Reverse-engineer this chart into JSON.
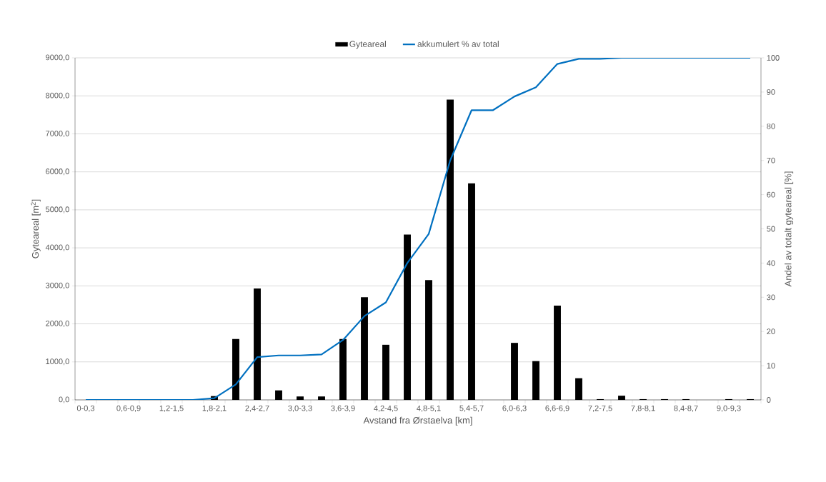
{
  "chart_data": {
    "type": "bar",
    "categories": [
      "0-0,3",
      null,
      "0,6-0,9",
      null,
      "1,2-1,5",
      null,
      "1,8-2,1",
      null,
      "2,4-2,7",
      null,
      "3,0-3,3",
      null,
      "3,6-3,9",
      null,
      "4,2-4,5",
      null,
      "4,8-5,1",
      null,
      "5,4-5,7",
      null,
      "6,0-6,3",
      null,
      "6,6-6,9",
      null,
      "7,2-7,5",
      null,
      "7,8-8,1",
      null,
      "8,4-8,7",
      null,
      "9,0-9,3",
      null
    ],
    "series": [
      {
        "name": "Gyteareal",
        "color": "#000000",
        "values": [
          0,
          0,
          0,
          0,
          0,
          0,
          100,
          1600,
          2930,
          250,
          90,
          90,
          1600,
          2700,
          1450,
          4350,
          3150,
          7900,
          5700,
          0,
          1500,
          1020,
          2480,
          570,
          20,
          110,
          20,
          20,
          20,
          0,
          20,
          20
        ]
      },
      {
        "name": "akkumulert % av total",
        "type": "line",
        "axis": "y2",
        "color": "#0070c0",
        "values": [
          0,
          0,
          0,
          0,
          0,
          0,
          0.5,
          4.5,
          12.5,
          13,
          13,
          13.3,
          17.5,
          24.5,
          28.5,
          40,
          48.5,
          70,
          84.7,
          84.7,
          88.7,
          91.4,
          98.2,
          99.7,
          99.7,
          100,
          100,
          100,
          100,
          100,
          100,
          100
        ]
      }
    ],
    "xlabel": "Avstand fra Ørstaelva [km]",
    "ylabel": "Gyteareal [m$^{2}$]",
    "y2label": "Andel av totalt gyteareal [%]",
    "ylim": [
      0,
      9000
    ],
    "yticks": [
      {
        "value": 0,
        "label": "0,0"
      },
      {
        "value": 1000,
        "label": "1000,0"
      },
      {
        "value": 2000,
        "label": "2000,0"
      },
      {
        "value": 3000,
        "label": "3000,0"
      },
      {
        "value": 4000,
        "label": "4000,0"
      },
      {
        "value": 5000,
        "label": "5000,0"
      },
      {
        "value": 6000,
        "label": "6000,0"
      },
      {
        "value": 7000,
        "label": "7000,0"
      },
      {
        "value": 8000,
        "label": "8000,0"
      },
      {
        "value": 9000,
        "label": "9000,0"
      }
    ],
    "y2lim": [
      0,
      100
    ],
    "y2ticks": [
      0,
      10,
      20,
      30,
      40,
      50,
      60,
      70,
      80,
      90,
      100
    ],
    "grid": "y",
    "legend": "top"
  }
}
